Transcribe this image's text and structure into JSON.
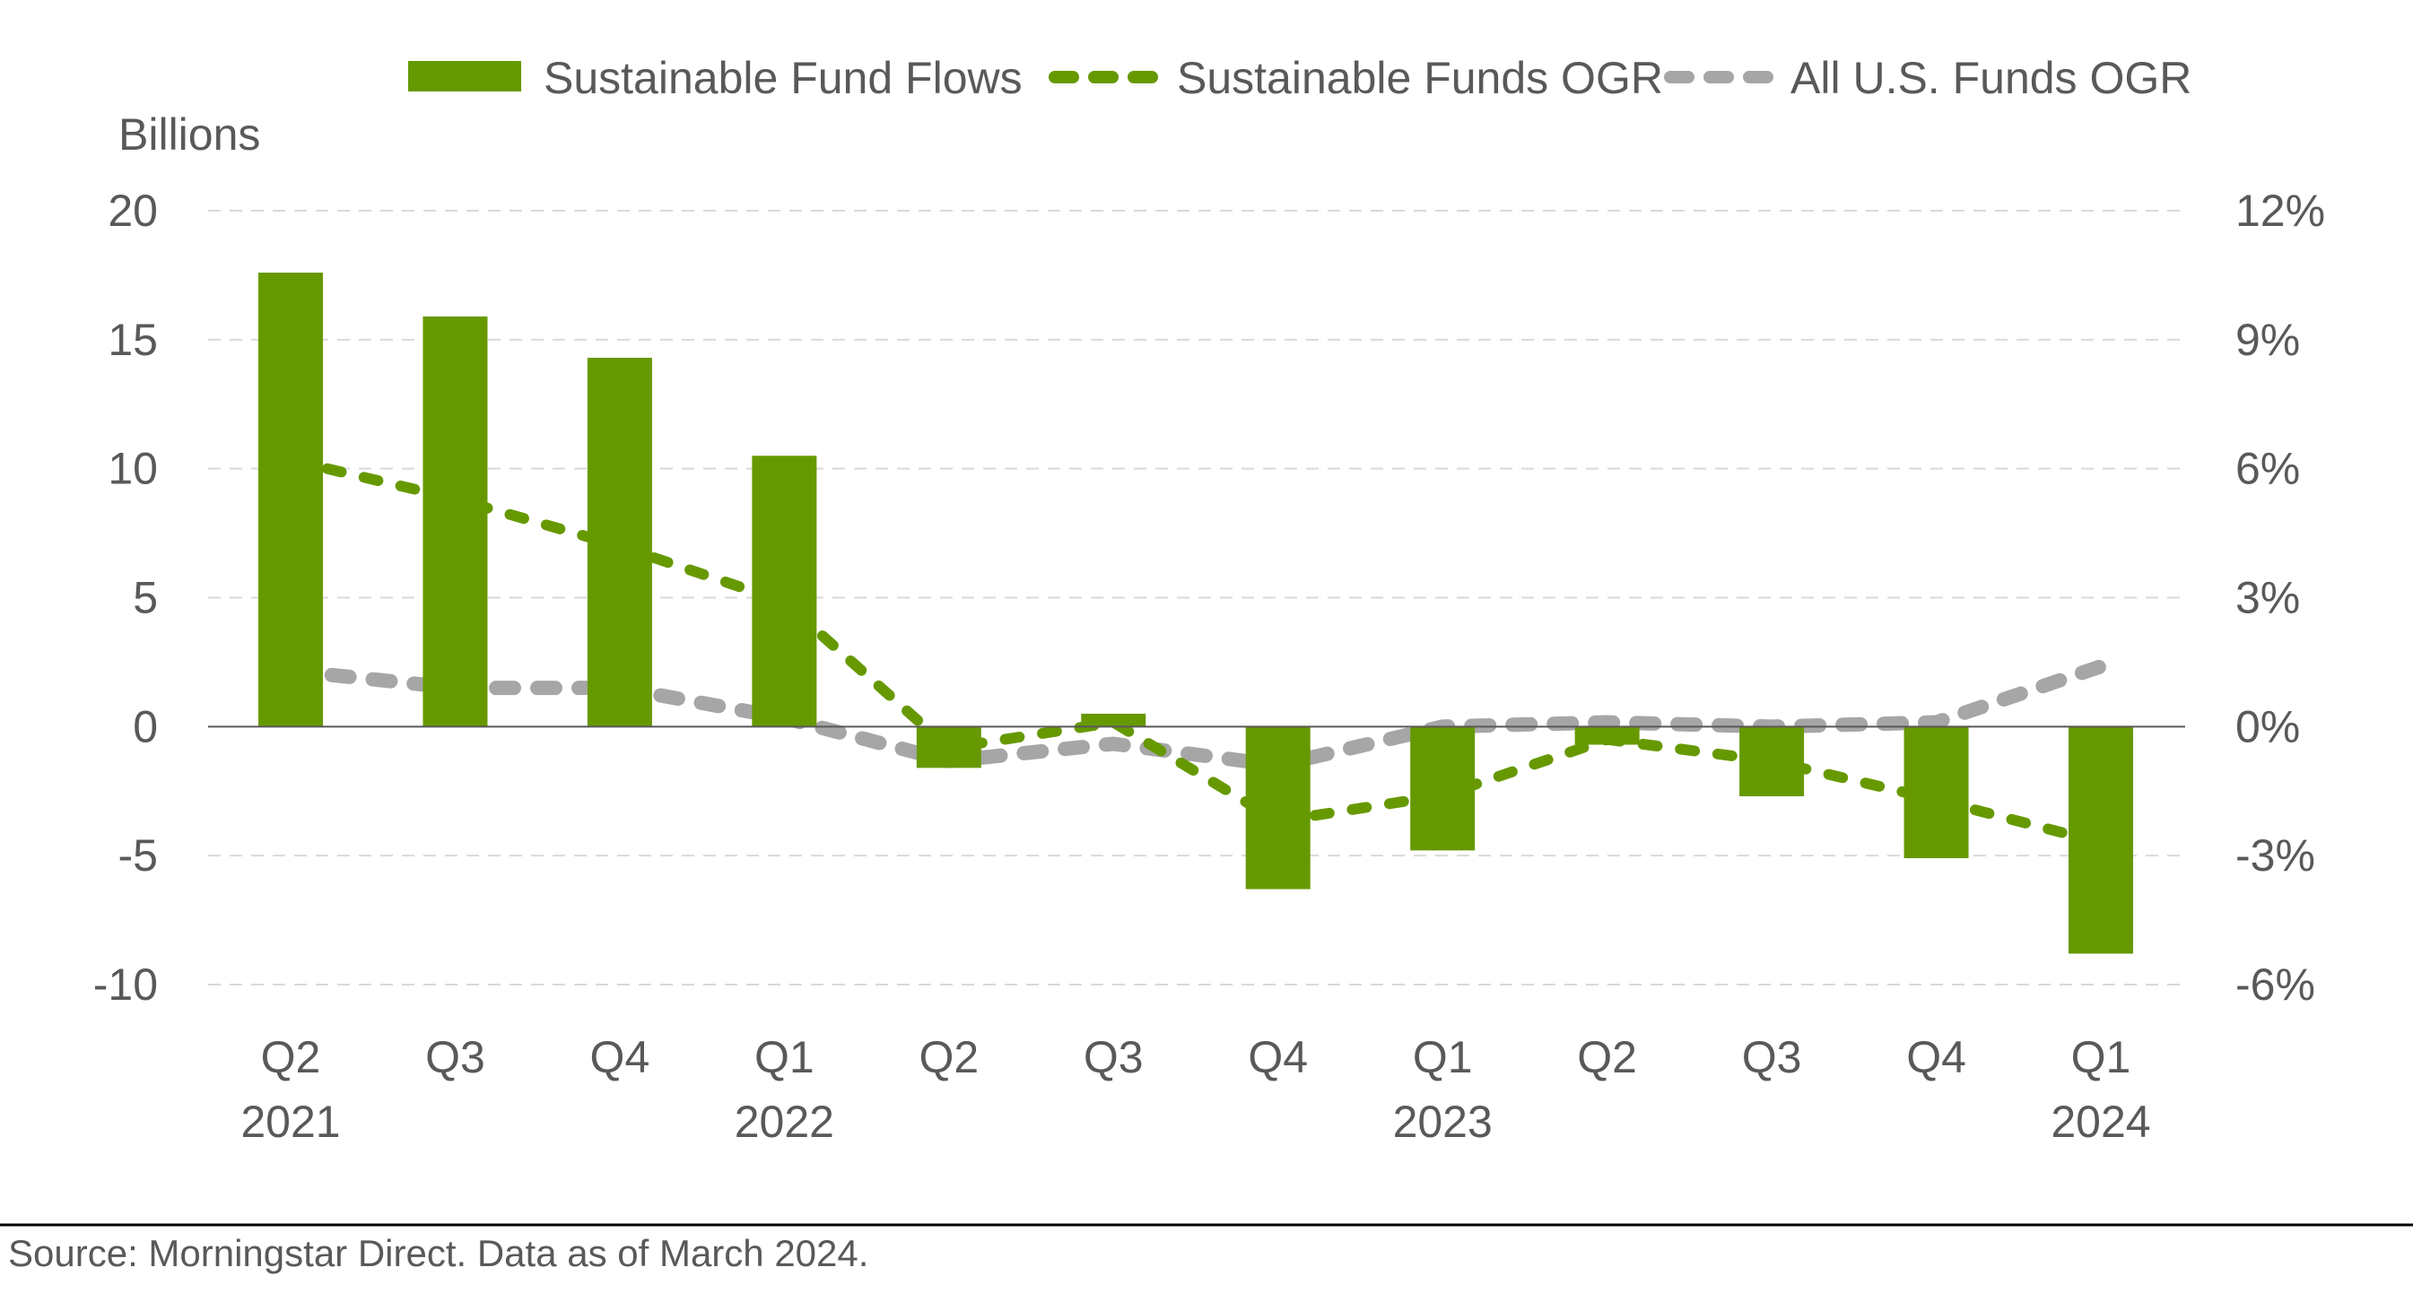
{
  "chart_data": {
    "type": "bar",
    "title": "",
    "unit_label_left": "Billions",
    "categories": [
      "Q2 2021",
      "Q3 2021",
      "Q4 2021",
      "Q1 2022",
      "Q2 2022",
      "Q3 2022",
      "Q4 2022",
      "Q1 2023",
      "Q2 2023",
      "Q3 2023",
      "Q4 2023",
      "Q1 2024"
    ],
    "x_tick_labels": [
      {
        "quarter": "Q2",
        "year": "2021"
      },
      {
        "quarter": "Q3",
        "year": ""
      },
      {
        "quarter": "Q4",
        "year": ""
      },
      {
        "quarter": "Q1",
        "year": "2022"
      },
      {
        "quarter": "Q2",
        "year": ""
      },
      {
        "quarter": "Q3",
        "year": ""
      },
      {
        "quarter": "Q4",
        "year": ""
      },
      {
        "quarter": "Q1",
        "year": "2023"
      },
      {
        "quarter": "Q2",
        "year": ""
      },
      {
        "quarter": "Q3",
        "year": ""
      },
      {
        "quarter": "Q4",
        "year": ""
      },
      {
        "quarter": "Q1",
        "year": "2024"
      }
    ],
    "series": [
      {
        "name": "Sustainable Fund Flows",
        "type": "bar",
        "axis": "left",
        "color": "#669900",
        "values": [
          17.6,
          15.9,
          14.3,
          10.5,
          -1.6,
          0.5,
          -6.3,
          -4.8,
          -0.7,
          -2.7,
          -5.1,
          -8.8
        ]
      },
      {
        "name": "Sustainable Funds OGR",
        "type": "line",
        "style": "dashed",
        "axis": "right",
        "color": "#669900",
        "values": [
          6.2,
          5.3,
          4.2,
          2.9,
          -0.5,
          0.1,
          -2.2,
          -1.6,
          -0.3,
          -0.8,
          -1.7,
          -2.7
        ]
      },
      {
        "name": "All U.S. Funds OGR",
        "type": "line",
        "style": "dashed",
        "axis": "right",
        "color": "#A6A6A6",
        "values": [
          1.3,
          0.9,
          0.9,
          0.2,
          -0.8,
          -0.4,
          -0.9,
          0.0,
          0.1,
          0.0,
          0.1,
          1.4
        ]
      }
    ],
    "y_left": {
      "label": "Billions",
      "ylim": [
        -10,
        20
      ],
      "ticks": [
        20,
        15,
        10,
        5,
        0,
        -5,
        -10
      ],
      "tick_labels": [
        "20",
        "15",
        "10",
        "5",
        "0",
        "-5",
        "-10"
      ]
    },
    "y_right": {
      "ylim": [
        -6,
        12
      ],
      "ticks": [
        12,
        9,
        6,
        3,
        0,
        -3,
        -6
      ],
      "tick_labels": [
        "12%",
        "9%",
        "6%",
        "3%",
        "0%",
        "-3%",
        "-6%"
      ]
    },
    "grid": true,
    "legend_position": "top-center",
    "source": "Source: Morningstar Direct. Data as of March 2024."
  }
}
